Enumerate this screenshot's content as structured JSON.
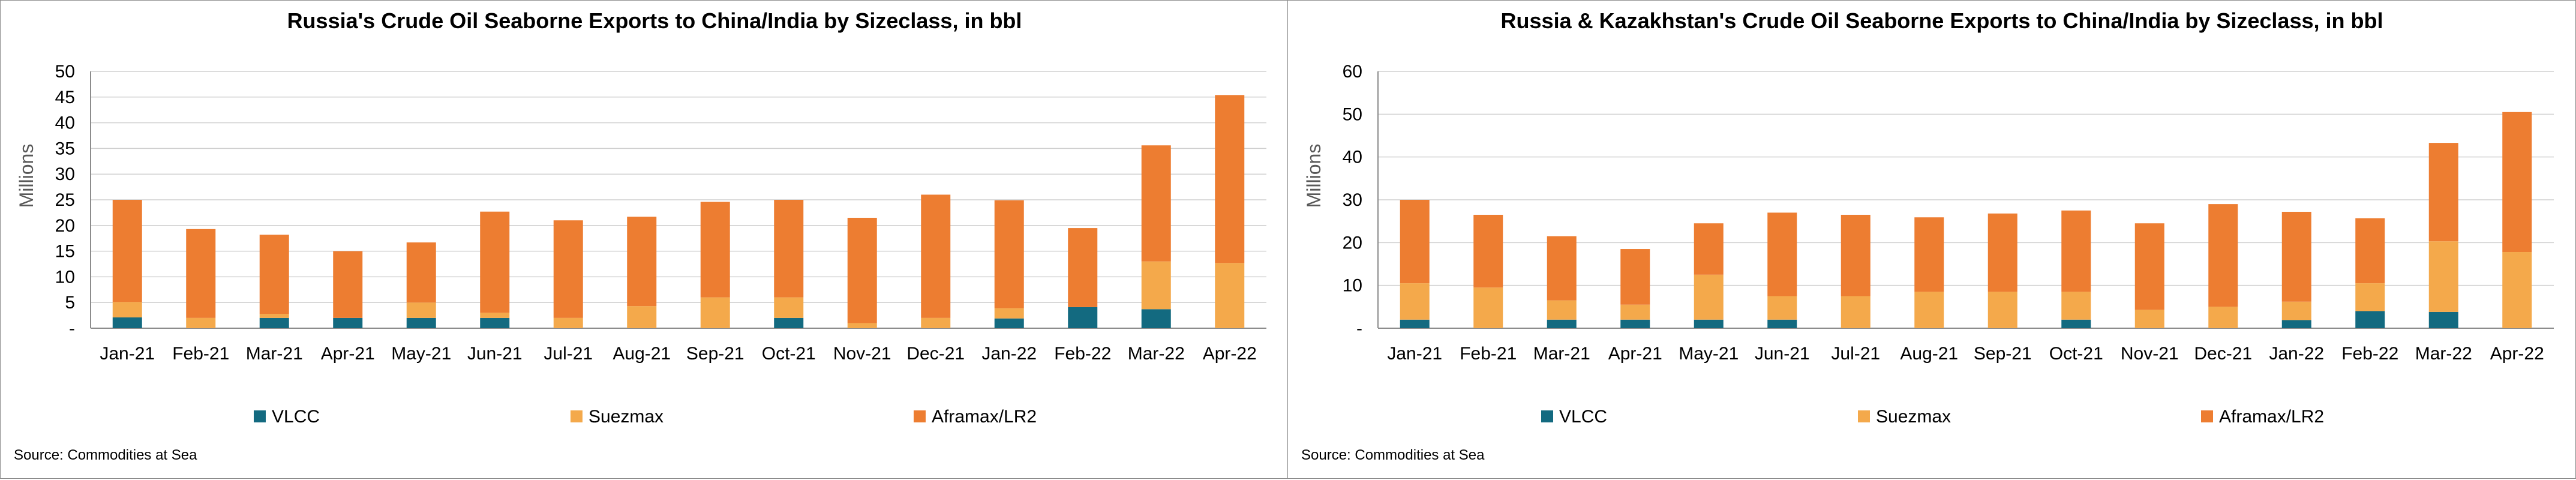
{
  "chart_data": [
    {
      "type": "bar",
      "stacked": true,
      "title": "Russia's Crude Oil Seaborne Exports to China/India by Sizeclass, in bbl",
      "ylabel": "Millions",
      "source": "Source: Commodities at Sea",
      "ylim": [
        0,
        50
      ],
      "ytick_step": 5,
      "ytick_labels": [
        "-",
        "5",
        "10",
        "15",
        "20",
        "25",
        "30",
        "35",
        "40",
        "45",
        "50"
      ],
      "grid": true,
      "legend_position": "bottom",
      "categories": [
        "Jan-21",
        "Feb-21",
        "Mar-21",
        "Apr-21",
        "May-21",
        "Jun-21",
        "Jul-21",
        "Aug-21",
        "Sep-21",
        "Oct-21",
        "Nov-21",
        "Dec-21",
        "Jan-22",
        "Feb-22",
        "Mar-22",
        "Apr-22"
      ],
      "series": [
        {
          "name": "VLCC",
          "color": "#136a80",
          "values": [
            2.1,
            0,
            2.0,
            2.0,
            2.0,
            2.0,
            0,
            0,
            0,
            2.0,
            0,
            0,
            1.9,
            4.1,
            3.7,
            0
          ]
        },
        {
          "name": "Suezmax",
          "color": "#f4a94b",
          "values": [
            3.0,
            2.0,
            0.8,
            0,
            3.0,
            1.0,
            2.0,
            4.3,
            6.0,
            4.0,
            1.0,
            2.0,
            2.0,
            0,
            9.3,
            12.7
          ]
        },
        {
          "name": "Aframax/LR2",
          "color": "#ed7d31",
          "values": [
            19.9,
            17.3,
            15.4,
            13.0,
            11.7,
            19.7,
            19.0,
            17.4,
            18.6,
            19.0,
            20.5,
            24.0,
            21.0,
            15.4,
            22.6,
            32.7
          ]
        }
      ]
    },
    {
      "type": "bar",
      "stacked": true,
      "title": "Russia & Kazakhstan's Crude Oil Seaborne Exports to China/India by Sizeclass, in bbl",
      "ylabel": "Millions",
      "source": "Source: Commodities at Sea",
      "ylim": [
        0,
        60
      ],
      "ytick_step": 10,
      "ytick_labels": [
        "-",
        "10",
        "20",
        "30",
        "40",
        "50",
        "60"
      ],
      "grid": true,
      "legend_position": "bottom",
      "categories": [
        "Jan-21",
        "Feb-21",
        "Mar-21",
        "Apr-21",
        "May-21",
        "Jun-21",
        "Jul-21",
        "Aug-21",
        "Sep-21",
        "Oct-21",
        "Nov-21",
        "Dec-21",
        "Jan-22",
        "Feb-22",
        "Mar-22",
        "Apr-22"
      ],
      "series": [
        {
          "name": "VLCC",
          "color": "#136a80",
          "values": [
            2.0,
            0,
            2.0,
            2.0,
            2.0,
            2.0,
            0,
            0,
            0,
            2.0,
            0,
            0,
            1.9,
            4.0,
            3.8,
            0
          ]
        },
        {
          "name": "Suezmax",
          "color": "#f4a94b",
          "values": [
            8.5,
            9.5,
            4.5,
            3.5,
            10.5,
            5.5,
            7.5,
            8.5,
            8.5,
            6.5,
            4.3,
            5.0,
            4.3,
            6.5,
            16.5,
            17.8
          ]
        },
        {
          "name": "Aframax/LR2",
          "color": "#ed7d31",
          "values": [
            19.5,
            17.0,
            15.0,
            13.0,
            12.0,
            19.5,
            19.0,
            17.4,
            18.3,
            19.0,
            20.2,
            24.0,
            21.0,
            15.2,
            23.0,
            32.7
          ]
        }
      ]
    }
  ]
}
